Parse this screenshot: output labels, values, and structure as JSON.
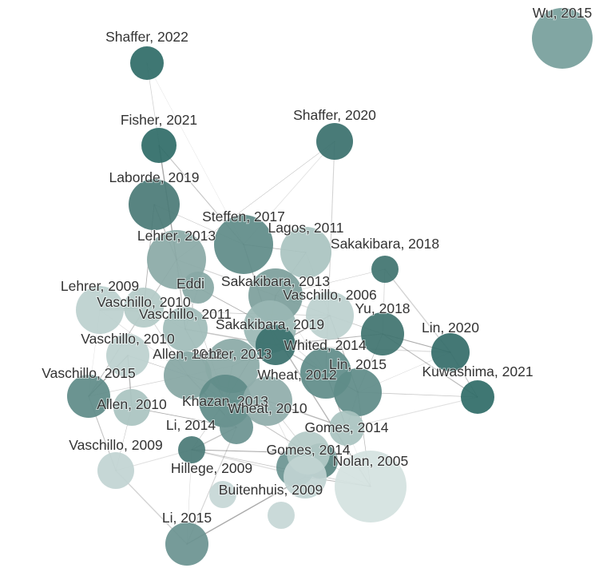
{
  "colors": {
    "background": "#ffffff",
    "edge": "#555555",
    "label": "#333333",
    "node_darkest": "#2f6b67",
    "node_palest": "#d4e2e0"
  },
  "nodes": [
    {
      "id": "wu-2015",
      "label": "Wu, 2015",
      "color": "#769e9b"
    },
    {
      "id": "shaffer-2022",
      "label": "Shaffer, 2022",
      "color": "#2f6b67"
    },
    {
      "id": "fisher-2021",
      "label": "Fisher, 2021",
      "color": "#2f6b67"
    },
    {
      "id": "shaffer-2020",
      "label": "Shaffer, 2020",
      "color": "#3a706c"
    },
    {
      "id": "laborde-2019",
      "label": "Laborde, 2019",
      "color": "#4a7a76"
    },
    {
      "id": "steffen-2017",
      "label": "Steffen, 2017",
      "color": "#5e8b88"
    },
    {
      "id": "lagos-2011",
      "label": "Lagos, 2011",
      "color": "#a9c3c0"
    },
    {
      "id": "lehrer-2013",
      "label": "Lehrer, 2013",
      "color": "#8aa9a6"
    },
    {
      "id": "sakakibara-2018",
      "label": "Sakakibara, 2018",
      "color": "#3f736f"
    },
    {
      "id": "eddi",
      "label": "Eddi",
      "color": "#88a8a5"
    },
    {
      "id": "sakakibara-2013",
      "label": "Sakakibara, 2013",
      "color": "#7c9e9b"
    },
    {
      "id": "lehrer-2009",
      "label": "Lehrer, 2009",
      "color": "#bcd0ce"
    },
    {
      "id": "vaschillo-2006",
      "label": "Vaschillo, 2006",
      "color": "#bcd0ce"
    },
    {
      "id": "vaschillo-2010a",
      "label": "Vaschillo, 2010",
      "color": "#b3cac7"
    },
    {
      "id": "yu-2018",
      "label": "Yu, 2018",
      "color": "#3f736f"
    },
    {
      "id": "vaschillo-2011",
      "label": "Vaschillo, 2011",
      "color": "#a0bcb9"
    },
    {
      "id": "sakakibara-2019",
      "label": "Sakakibara, 2019",
      "color": "#9ab7b4"
    },
    {
      "id": "lin-2020",
      "label": "Lin, 2020",
      "color": "#346d69"
    },
    {
      "id": "vaschillo-2010b",
      "label": "Vaschillo, 2010",
      "color": "#bcd0ce"
    },
    {
      "id": "whited-2014",
      "label": "Whited, 2014",
      "color": "#3a706c"
    },
    {
      "id": "allen-2012",
      "label": "Allen, 2012",
      "color": "#86a6a3"
    },
    {
      "id": "lehrer-2013b",
      "label": "Lehrer, 2013",
      "color": "#8aa9a6"
    },
    {
      "id": "lin-2015",
      "label": "Lin, 2015",
      "color": "#5e8b88"
    },
    {
      "id": "vaschillo-2015",
      "label": "Vaschillo, 2015",
      "color": "#5e8b88"
    },
    {
      "id": "wheat-2012",
      "label": "Wheat, 2012",
      "color": "#5f8c89"
    },
    {
      "id": "kuwashima-2021",
      "label": "Kuwashima, 2021",
      "color": "#2f6b67"
    },
    {
      "id": "allen-2010",
      "label": "Allen, 2010",
      "color": "#a9c3c0"
    },
    {
      "id": "khazan-2013",
      "label": "Khazan, 2013",
      "color": "#5e8b88"
    },
    {
      "id": "wheat-2010",
      "label": "Wheat, 2010",
      "color": "#8fadaa"
    },
    {
      "id": "li-2014",
      "label": "Li, 2014",
      "color": "#6a9390"
    },
    {
      "id": "gomes-2014a",
      "label": "Gomes, 2014",
      "color": "#a9c3c0"
    },
    {
      "id": "vaschillo-2009",
      "label": "Vaschillo, 2009",
      "color": "#c1d4d2"
    },
    {
      "id": "gomes-2014b",
      "label": "Gomes, 2014",
      "color": "#b3cac7"
    },
    {
      "id": "nolan-2005",
      "label": "Nolan, 2005",
      "color": "#d4e2e0"
    },
    {
      "id": "hillege-2009",
      "label": "Hillege, 2009",
      "color": "#4a7a76"
    },
    {
      "id": "buitenhuis-2009",
      "label": "Buitenhuis, 2009",
      "color": "#c1d4d2"
    },
    {
      "id": "li-2015",
      "label": "Li, 2015",
      "color": "#6a9390"
    }
  ],
  "edges": [
    [
      "shaffer-2022",
      "steffen-2017"
    ],
    [
      "shaffer-2022",
      "lehrer-2013"
    ],
    [
      "fisher-2021",
      "steffen-2017"
    ],
    [
      "fisher-2021",
      "lehrer-2013"
    ],
    [
      "shaffer-2020",
      "lehrer-2013"
    ],
    [
      "shaffer-2020",
      "steffen-2017"
    ],
    [
      "shaffer-2020",
      "wheat-2012"
    ],
    [
      "laborde-2019",
      "lehrer-2013"
    ],
    [
      "laborde-2019",
      "steffen-2017"
    ],
    [
      "laborde-2019",
      "vaschillo-2010a"
    ],
    [
      "sakakibara-2018",
      "yu-2018"
    ],
    [
      "sakakibara-2018",
      "lin-2020"
    ],
    [
      "sakakibara-2018",
      "sakakibara-2013"
    ],
    [
      "lin-2020",
      "kuwashima-2021"
    ],
    [
      "lin-2020",
      "yu-2018"
    ],
    [
      "lin-2020",
      "whited-2014"
    ],
    [
      "lin-2020",
      "lin-2015"
    ],
    [
      "kuwashima-2021",
      "lin-2015"
    ],
    [
      "kuwashima-2021",
      "yu-2018"
    ],
    [
      "vaschillo-2015",
      "vaschillo-2010b"
    ],
    [
      "vaschillo-2015",
      "lehrer-2009"
    ],
    [
      "vaschillo-2015",
      "allen-2012"
    ],
    [
      "vaschillo-2015",
      "vaschillo-2009"
    ],
    [
      "lehrer-2009",
      "vaschillo-2010a"
    ],
    [
      "lehrer-2009",
      "vaschillo-2006"
    ],
    [
      "lehrer-2009",
      "allen-2012"
    ],
    [
      "lehrer-2013",
      "sakakibara-2013"
    ],
    [
      "lehrer-2013",
      "vaschillo-2011"
    ],
    [
      "lehrer-2013",
      "khazan-2013"
    ],
    [
      "steffen-2017",
      "lagos-2011"
    ],
    [
      "steffen-2017",
      "sakakibara-2019"
    ],
    [
      "steffen-2017",
      "whited-2014"
    ],
    [
      "lagos-2011",
      "vaschillo-2006"
    ],
    [
      "lagos-2011",
      "sakakibara-2013"
    ],
    [
      "sakakibara-2013",
      "sakakibara-2019"
    ],
    [
      "sakakibara-2013",
      "vaschillo-2006"
    ],
    [
      "sakakibara-2013",
      "wheat-2012"
    ],
    [
      "vaschillo-2006",
      "yu-2018"
    ],
    [
      "vaschillo-2006",
      "lin-2015"
    ],
    [
      "vaschillo-2006",
      "whited-2014"
    ],
    [
      "vaschillo-2010a",
      "vaschillo-2011"
    ],
    [
      "vaschillo-2010a",
      "allen-2012"
    ],
    [
      "vaschillo-2011",
      "khazan-2013"
    ],
    [
      "vaschillo-2010b",
      "allen-2010"
    ],
    [
      "vaschillo-2010b",
      "allen-2012"
    ],
    [
      "allen-2012",
      "khazan-2013"
    ],
    [
      "allen-2012",
      "wheat-2010"
    ],
    [
      "allen-2012",
      "li-2014"
    ],
    [
      "sakakibara-2019",
      "whited-2014"
    ],
    [
      "sakakibara-2019",
      "khazan-2013"
    ],
    [
      "sakakibara-2019",
      "wheat-2012"
    ],
    [
      "whited-2014",
      "wheat-2012"
    ],
    [
      "whited-2014",
      "lin-2015"
    ],
    [
      "wheat-2012",
      "lin-2015"
    ],
    [
      "wheat-2012",
      "gomes-2014a"
    ],
    [
      "lin-2015",
      "gomes-2014a"
    ],
    [
      "lin-2015",
      "nolan-2005"
    ],
    [
      "yu-2018",
      "lin-2015"
    ],
    [
      "yu-2018",
      "whited-2014"
    ],
    [
      "khazan-2013",
      "wheat-2010"
    ],
    [
      "khazan-2013",
      "li-2014"
    ],
    [
      "khazan-2013",
      "hillege-2009"
    ],
    [
      "khazan-2013",
      "gomes-2014b"
    ],
    [
      "wheat-2010",
      "gomes-2014a"
    ],
    [
      "wheat-2010",
      "gomes-2014b"
    ],
    [
      "wheat-2010",
      "buitenhuis-2009"
    ],
    [
      "li-2014",
      "li-2015"
    ],
    [
      "li-2014",
      "hillege-2009"
    ],
    [
      "allen-2010",
      "vaschillo-2009"
    ],
    [
      "allen-2010",
      "li-2014"
    ],
    [
      "vaschillo-2009",
      "hillege-2009"
    ],
    [
      "vaschillo-2009",
      "li-2015"
    ],
    [
      "gomes-2014b",
      "nolan-2005"
    ],
    [
      "gomes-2014b",
      "buitenhuis-2009"
    ],
    [
      "gomes-2014b",
      "hillege-2009"
    ],
    [
      "hillege-2009",
      "buitenhuis-2009"
    ],
    [
      "hillege-2009",
      "li-2015"
    ],
    [
      "hillege-2009",
      "nolan-2005"
    ],
    [
      "buitenhuis-2009",
      "nolan-2005"
    ],
    [
      "buitenhuis-2009",
      "li-2015"
    ],
    [
      "nolan-2005",
      "gomes-2014a"
    ],
    [
      "nolan-2005",
      "lin-2015"
    ],
    [
      "lehrer-2013",
      "vaschillo-2015"
    ],
    [
      "sakakibara-2019",
      "nolan-2005"
    ],
    [
      "lehrer-2013b",
      "whited-2014"
    ],
    [
      "lehrer-2013b",
      "allen-2012"
    ],
    [
      "lehrer-2013b",
      "khazan-2013"
    ],
    [
      "vaschillo-2011",
      "whited-2014"
    ],
    [
      "eddi",
      "vaschillo-2011"
    ],
    [
      "eddi",
      "sakakibara-2019"
    ],
    [
      "gomes-2014a",
      "kuwashima-2021"
    ]
  ]
}
